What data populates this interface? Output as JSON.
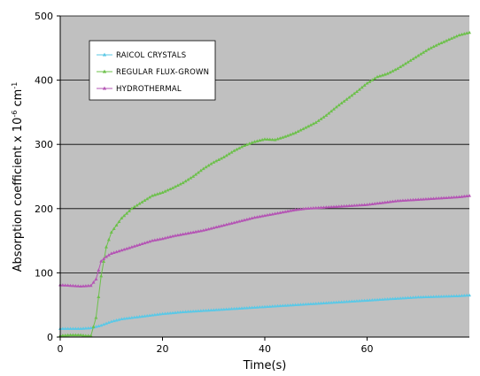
{
  "chart_data": {
    "type": "line",
    "xlabel": "Time(s)",
    "ylabel": "Absorption coefficient x 10",
    "ylabel_exp1": "-6",
    "ylabel_unit": " cm",
    "ylabel_exp2": "-1",
    "xlim": [
      0,
      80
    ],
    "ylim": [
      0,
      500
    ],
    "xticks": [
      0,
      20,
      40,
      60
    ],
    "yticks": [
      0,
      100,
      200,
      300,
      400,
      500
    ],
    "grid": "horizontal",
    "plot_background": "#c0c0c0",
    "legend_position": "top-left",
    "series": [
      {
        "name": "RAICOL CRYSTALS",
        "color": "#5bc8e6",
        "marker": "triangle",
        "points": [
          [
            0,
            13
          ],
          [
            2,
            13
          ],
          [
            4,
            13
          ],
          [
            6,
            14
          ],
          [
            8,
            18
          ],
          [
            10,
            24
          ],
          [
            12,
            28
          ],
          [
            14,
            30
          ],
          [
            16,
            32
          ],
          [
            18,
            34
          ],
          [
            20,
            36
          ],
          [
            24,
            39
          ],
          [
            28,
            41
          ],
          [
            30,
            42
          ],
          [
            34,
            44
          ],
          [
            38,
            46
          ],
          [
            40,
            47
          ],
          [
            44,
            49
          ],
          [
            48,
            51
          ],
          [
            50,
            52
          ],
          [
            54,
            54
          ],
          [
            58,
            56
          ],
          [
            60,
            57
          ],
          [
            64,
            59
          ],
          [
            68,
            61
          ],
          [
            70,
            62
          ],
          [
            74,
            63
          ],
          [
            78,
            64
          ],
          [
            80,
            65
          ]
        ]
      },
      {
        "name": "REGULAR FLUX-GROWN",
        "color": "#6cc04a",
        "marker": "triangle",
        "points": [
          [
            0,
            2
          ],
          [
            2,
            3
          ],
          [
            4,
            3
          ],
          [
            5,
            2
          ],
          [
            6,
            2
          ],
          [
            7,
            30
          ],
          [
            8,
            95
          ],
          [
            9,
            140
          ],
          [
            10,
            163
          ],
          [
            12,
            185
          ],
          [
            14,
            200
          ],
          [
            16,
            210
          ],
          [
            18,
            220
          ],
          [
            20,
            225
          ],
          [
            22,
            232
          ],
          [
            24,
            240
          ],
          [
            26,
            250
          ],
          [
            28,
            262
          ],
          [
            30,
            272
          ],
          [
            32,
            280
          ],
          [
            34,
            290
          ],
          [
            36,
            298
          ],
          [
            38,
            304
          ],
          [
            40,
            308
          ],
          [
            42,
            307
          ],
          [
            44,
            312
          ],
          [
            46,
            318
          ],
          [
            48,
            326
          ],
          [
            50,
            334
          ],
          [
            52,
            345
          ],
          [
            54,
            358
          ],
          [
            56,
            370
          ],
          [
            58,
            382
          ],
          [
            60,
            395
          ],
          [
            62,
            405
          ],
          [
            64,
            410
          ],
          [
            66,
            418
          ],
          [
            68,
            428
          ],
          [
            70,
            438
          ],
          [
            72,
            448
          ],
          [
            74,
            456
          ],
          [
            76,
            463
          ],
          [
            78,
            470
          ],
          [
            80,
            474
          ]
        ]
      },
      {
        "name": "HYDROTHERMAL",
        "color": "#b455b4",
        "marker": "triangle",
        "points": [
          [
            0,
            81
          ],
          [
            2,
            80
          ],
          [
            4,
            79
          ],
          [
            6,
            80
          ],
          [
            7,
            90
          ],
          [
            8,
            118
          ],
          [
            9,
            125
          ],
          [
            10,
            130
          ],
          [
            12,
            135
          ],
          [
            14,
            140
          ],
          [
            16,
            145
          ],
          [
            18,
            150
          ],
          [
            20,
            153
          ],
          [
            22,
            157
          ],
          [
            24,
            160
          ],
          [
            26,
            163
          ],
          [
            28,
            166
          ],
          [
            30,
            170
          ],
          [
            32,
            174
          ],
          [
            34,
            178
          ],
          [
            36,
            182
          ],
          [
            38,
            186
          ],
          [
            40,
            189
          ],
          [
            42,
            192
          ],
          [
            44,
            195
          ],
          [
            46,
            198
          ],
          [
            48,
            200
          ],
          [
            50,
            201
          ],
          [
            52,
            202
          ],
          [
            54,
            203
          ],
          [
            56,
            204
          ],
          [
            58,
            205
          ],
          [
            60,
            206
          ],
          [
            62,
            208
          ],
          [
            64,
            210
          ],
          [
            66,
            212
          ],
          [
            68,
            213
          ],
          [
            70,
            214
          ],
          [
            72,
            215
          ],
          [
            74,
            216
          ],
          [
            76,
            217
          ],
          [
            78,
            218
          ],
          [
            80,
            220
          ]
        ]
      }
    ]
  }
}
